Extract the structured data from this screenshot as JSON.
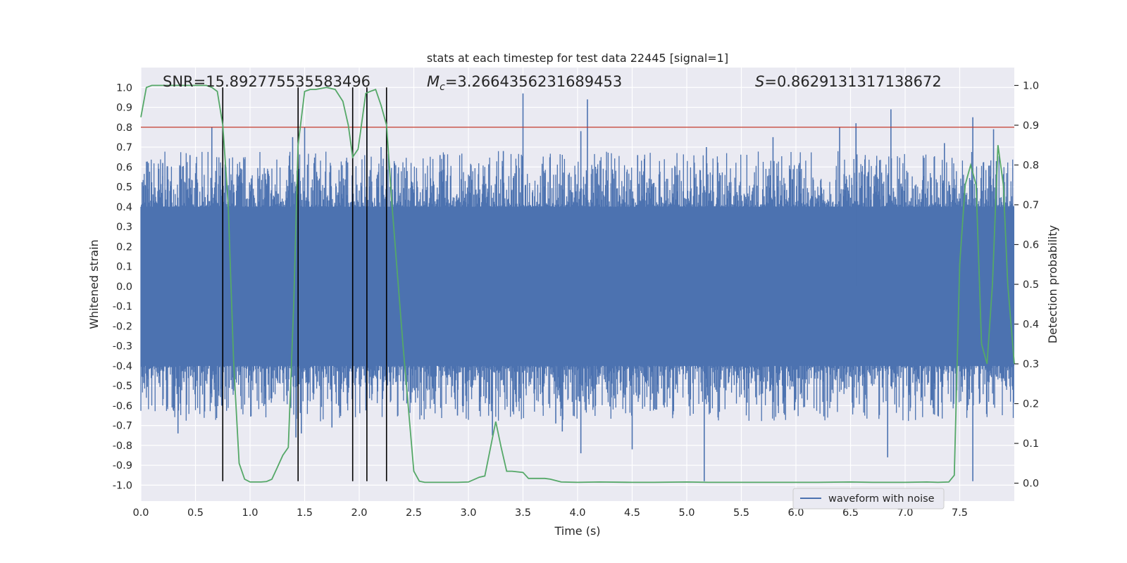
{
  "chart_data": {
    "type": "line",
    "title": "stats at each timestep for test data 22445 [signal=1]",
    "xlabel": "Time (s)",
    "ylabel": "Whitened strain",
    "y2label": "Detection probability",
    "xlim": [
      0.0,
      8.0
    ],
    "ylim": [
      -1.08,
      1.1
    ],
    "y2lim": [
      -0.045,
      1.045
    ],
    "xticks": [
      "0.0",
      "0.5",
      "1.0",
      "1.5",
      "2.0",
      "2.5",
      "3.0",
      "3.5",
      "4.0",
      "4.5",
      "5.0",
      "5.5",
      "6.0",
      "6.5",
      "7.0",
      "7.5"
    ],
    "yticks": [
      "1.0",
      "0.9",
      "0.8",
      "0.7",
      "0.6",
      "0.5",
      "0.4",
      "0.3",
      "0.2",
      "0.1",
      "0.0",
      "-0.1",
      "-0.2",
      "-0.3",
      "-0.4",
      "-0.5",
      "-0.6",
      "-0.7",
      "-0.8",
      "-0.9",
      "-1.0"
    ],
    "y2ticks": [
      "1.0",
      "0.9",
      "0.8",
      "0.7",
      "0.6",
      "0.5",
      "0.4",
      "0.3",
      "0.2",
      "0.1",
      "0.0"
    ],
    "grid": true,
    "legend": {
      "entries": [
        "waveform with noise"
      ],
      "placement": "lower-right"
    },
    "annotations": {
      "snr": "SNR=15.892775535583496",
      "mc_symbol": "M",
      "mc_sub": "c",
      "mc_value": "=3.2664356231689453",
      "s_symbol": "S",
      "s_value": "=0.8629131317138672"
    },
    "threshold": {
      "value": 0.8,
      "axis": "left",
      "color": "#c0392b"
    },
    "event_markers_x": [
      0.75,
      1.44,
      1.94,
      2.07,
      2.25
    ],
    "event_markers_yrange": [
      -0.98,
      1.0
    ],
    "waveform": {
      "name": "waveform with noise",
      "color": "#4c72b0",
      "envelope_hi": 0.4,
      "envelope_lo": -0.4,
      "spikes": [
        {
          "x": 0.65,
          "y": 0.8
        },
        {
          "x": 0.2,
          "y": 0.62
        },
        {
          "x": 0.45,
          "y": 0.66
        },
        {
          "x": 1.39,
          "y": 0.75
        },
        {
          "x": 1.5,
          "y": 0.8
        },
        {
          "x": 2.07,
          "y": 0.99
        },
        {
          "x": 2.2,
          "y": 0.7
        },
        {
          "x": 2.74,
          "y": 0.66
        },
        {
          "x": 3.5,
          "y": 0.97
        },
        {
          "x": 3.32,
          "y": 0.68
        },
        {
          "x": 4.09,
          "y": 0.94
        },
        {
          "x": 4.03,
          "y": 0.78
        },
        {
          "x": 4.55,
          "y": 0.66
        },
        {
          "x": 5.18,
          "y": 0.7
        },
        {
          "x": 6.4,
          "y": 0.8
        },
        {
          "x": 6.55,
          "y": 0.82
        },
        {
          "x": 6.87,
          "y": 0.89
        },
        {
          "x": 6.55,
          "y": 0.8
        },
        {
          "x": 7.62,
          "y": 0.85
        },
        {
          "x": 7.81,
          "y": 0.79
        },
        {
          "x": 7.36,
          "y": 0.72
        },
        {
          "x": 5.79,
          "y": 0.75
        },
        {
          "x": 0.34,
          "y": -0.74
        },
        {
          "x": 0.74,
          "y": -0.6
        },
        {
          "x": 1.42,
          "y": -0.76
        },
        {
          "x": 1.47,
          "y": -0.74
        },
        {
          "x": 1.75,
          "y": -0.71
        },
        {
          "x": 3.22,
          "y": -0.75
        },
        {
          "x": 3.86,
          "y": -0.73
        },
        {
          "x": 4.03,
          "y": -0.84
        },
        {
          "x": 4.5,
          "y": -0.82
        },
        {
          "x": 5.16,
          "y": -0.98
        },
        {
          "x": 6.84,
          "y": -0.86
        },
        {
          "x": 7.62,
          "y": -0.98
        },
        {
          "x": 3.8,
          "y": -0.69
        },
        {
          "x": 2.9,
          "y": -0.65
        }
      ]
    },
    "detection_probability": {
      "name": "detection probability",
      "color": "#55a868",
      "x": [
        0.0,
        0.05,
        0.1,
        0.2,
        0.3,
        0.4,
        0.5,
        0.6,
        0.65,
        0.7,
        0.75,
        0.8,
        0.85,
        0.9,
        0.95,
        1.0,
        1.05,
        1.1,
        1.15,
        1.2,
        1.25,
        1.3,
        1.35,
        1.4,
        1.44,
        1.5,
        1.55,
        1.6,
        1.7,
        1.78,
        1.85,
        1.9,
        1.94,
        1.99,
        2.02,
        2.06,
        2.1,
        2.15,
        2.2,
        2.25,
        2.3,
        2.4,
        2.5,
        2.55,
        2.6,
        2.7,
        2.8,
        2.9,
        3.0,
        3.1,
        3.15,
        3.25,
        3.3,
        3.35,
        3.4,
        3.5,
        3.55,
        3.7,
        3.75,
        3.85,
        4.0,
        4.2,
        4.5,
        4.7,
        5.0,
        5.2,
        5.5,
        5.7,
        6.0,
        6.2,
        6.5,
        6.7,
        7.0,
        7.2,
        7.3,
        7.4,
        7.45,
        7.5,
        7.55,
        7.6,
        7.65,
        7.7,
        7.75,
        7.8,
        7.85,
        7.9,
        7.94,
        8.0
      ],
      "y": [
        0.92,
        0.995,
        1.0,
        1.0,
        1.0,
        1.0,
        1.0,
        1.0,
        0.995,
        0.985,
        0.9,
        0.7,
        0.3,
        0.05,
        0.01,
        0.003,
        0.003,
        0.003,
        0.004,
        0.01,
        0.04,
        0.07,
        0.09,
        0.45,
        0.85,
        0.985,
        0.99,
        0.99,
        0.995,
        0.99,
        0.96,
        0.9,
        0.82,
        0.84,
        0.9,
        0.98,
        0.985,
        0.99,
        0.95,
        0.9,
        0.7,
        0.35,
        0.03,
        0.005,
        0.002,
        0.002,
        0.002,
        0.002,
        0.003,
        0.015,
        0.018,
        0.155,
        0.09,
        0.03,
        0.03,
        0.027,
        0.012,
        0.012,
        0.01,
        0.003,
        0.002,
        0.003,
        0.002,
        0.002,
        0.003,
        0.002,
        0.002,
        0.002,
        0.002,
        0.002,
        0.003,
        0.002,
        0.002,
        0.003,
        0.002,
        0.003,
        0.02,
        0.55,
        0.75,
        0.8,
        0.75,
        0.35,
        0.3,
        0.5,
        0.85,
        0.75,
        0.5,
        0.3
      ]
    }
  }
}
